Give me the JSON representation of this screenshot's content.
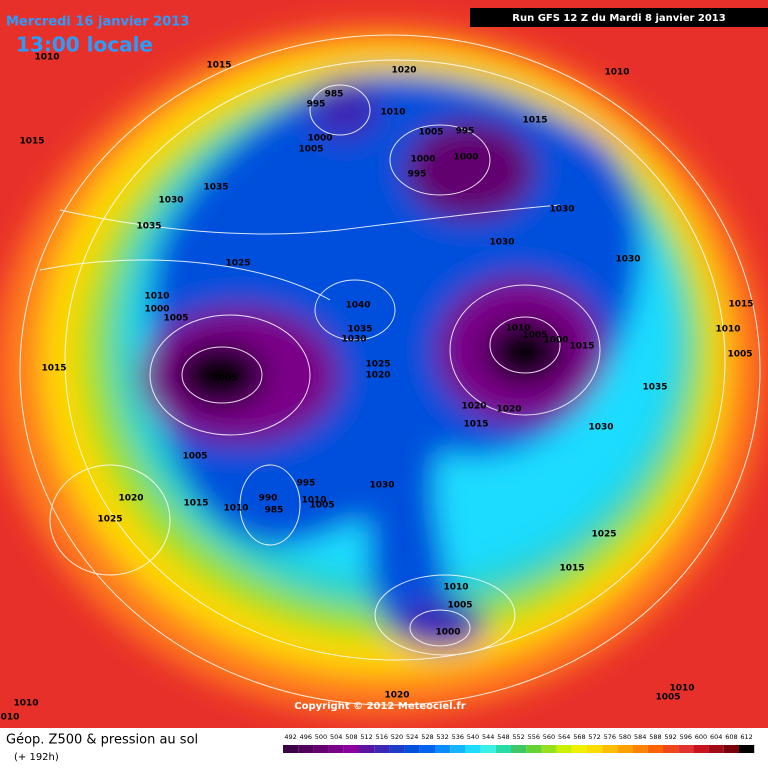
{
  "header": {
    "date": "Mercredi 16 janvier 2013",
    "time": "13:00 locale",
    "run": "Run GFS 12 Z du Mardi 8 janvier 2013"
  },
  "map": {
    "copyright": "Copyright © 2012 Meteociel.fr",
    "isobar_labels": [
      1010,
      1015,
      1020,
      1010,
      985,
      995,
      1010,
      1005,
      995,
      1015,
      1000,
      1005,
      1000,
      1000,
      995,
      1015,
      1035,
      1030,
      1035,
      1030,
      1030,
      1025,
      1030,
      1010,
      1000,
      1005,
      1040,
      1035,
      1030,
      1010,
      1005,
      1000,
      1015,
      1015,
      1010,
      1005,
      1015,
      1025,
      1020,
      1005,
      1035,
      1020,
      1020,
      1015,
      1030,
      1005,
      995,
      990,
      985,
      1010,
      1005,
      1030,
      1015,
      1010,
      1020,
      1025,
      1025,
      1015,
      1010,
      1005,
      1000,
      1010,
      1005,
      1020,
      1010,
      "010"
    ]
  },
  "legend": {
    "title": "Géop. Z500 & pression au sol",
    "subtitle": "(+ 192h)",
    "values": [
      492,
      496,
      500,
      504,
      508,
      512,
      516,
      520,
      524,
      528,
      532,
      536,
      540,
      544,
      548,
      552,
      556,
      560,
      564,
      568,
      572,
      576,
      580,
      584,
      588,
      592,
      596,
      600,
      604,
      608,
      612
    ],
    "colors": [
      "#3c0046",
      "#50005a",
      "#640070",
      "#7a0088",
      "#8c00a0",
      "#5a14a0",
      "#3c28b4",
      "#1e3cc8",
      "#0050dc",
      "#0064f0",
      "#0a8cff",
      "#14b4ff",
      "#1edcff",
      "#3cf0e6",
      "#28dcaa",
      "#3cc864",
      "#64d232",
      "#96e11e",
      "#c8f000",
      "#f0f000",
      "#ffdc00",
      "#ffbe00",
      "#ffa000",
      "#ff8200",
      "#ff6400",
      "#f0461e",
      "#e1322d",
      "#c8141e",
      "#a00a14",
      "#78000a",
      "#000000"
    ]
  }
}
